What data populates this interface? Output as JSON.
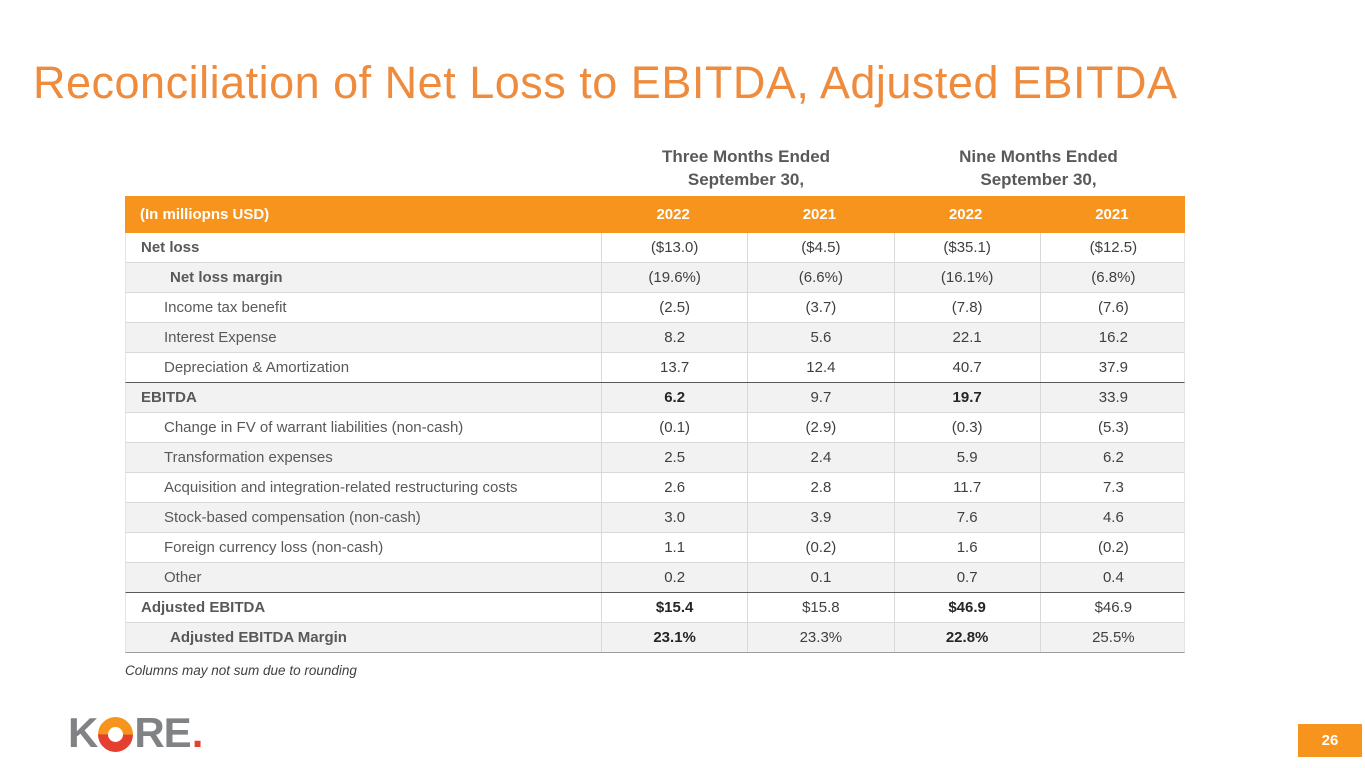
{
  "slide": {
    "title": "Reconciliation of Net Loss to EBITDA, Adjusted EBITDA",
    "footnote": "Columns may not sum due to rounding",
    "page_number": "26",
    "logo": {
      "k": "K",
      "re": "RE",
      "dot": "."
    }
  },
  "colors": {
    "title_orange": "#EE8B3D",
    "header_orange": "#F7941E",
    "logo_red": "#E5402F",
    "logo_gray": "#808285",
    "row_stripe": "#F2F2F2",
    "text_gray": "#595959"
  },
  "table": {
    "unit_label": "(In milliopns USD)",
    "group_headers": [
      {
        "line1": "Three Months Ended",
        "line2": "September 30,"
      },
      {
        "line1": "Nine Months Ended",
        "line2": "September 30,"
      }
    ],
    "year_headers": [
      "2022",
      "2021",
      "2022",
      "2021"
    ],
    "rows": [
      {
        "label": "Net loss",
        "values": [
          "($13.0)",
          "($4.5)",
          "($35.1)",
          "($12.5)"
        ]
      },
      {
        "label": "Net loss margin",
        "values": [
          "(19.6%)",
          "(6.6%)",
          "(16.1%)",
          "(6.8%)"
        ]
      },
      {
        "label": "Income tax benefit",
        "values": [
          "(2.5)",
          "(3.7)",
          "(7.8)",
          "(7.6)"
        ]
      },
      {
        "label": "Interest Expense",
        "values": [
          "8.2",
          "5.6",
          "22.1",
          "16.2"
        ]
      },
      {
        "label": "Depreciation & Amortization",
        "values": [
          "13.7",
          "12.4",
          "40.7",
          "37.9"
        ]
      },
      {
        "label": "EBITDA",
        "values": [
          "6.2",
          "9.7",
          "19.7",
          "33.9"
        ]
      },
      {
        "label": "Change in FV of warrant liabilities (non-cash)",
        "values": [
          "(0.1)",
          "(2.9)",
          "(0.3)",
          "(5.3)"
        ]
      },
      {
        "label": "Transformation expenses",
        "values": [
          "2.5",
          "2.4",
          "5.9",
          "6.2"
        ]
      },
      {
        "label": "Acquisition and integration-related restructuring costs",
        "values": [
          "2.6",
          "2.8",
          "11.7",
          "7.3"
        ]
      },
      {
        "label": "Stock-based compensation (non-cash)",
        "values": [
          "3.0",
          "3.9",
          "7.6",
          "4.6"
        ]
      },
      {
        "label": "Foreign currency loss (non-cash)",
        "values": [
          "1.1",
          "(0.2)",
          "1.6",
          "(0.2)"
        ]
      },
      {
        "label": "Other",
        "values": [
          "0.2",
          "0.1",
          "0.7",
          "0.4"
        ]
      },
      {
        "label": "Adjusted EBITDA",
        "values": [
          "$15.4",
          "$15.8",
          "$46.9",
          "$46.9"
        ]
      },
      {
        "label": "Adjusted EBITDA Margin",
        "values": [
          "23.1%",
          "23.3%",
          "22.8%",
          "25.5%"
        ]
      }
    ]
  }
}
